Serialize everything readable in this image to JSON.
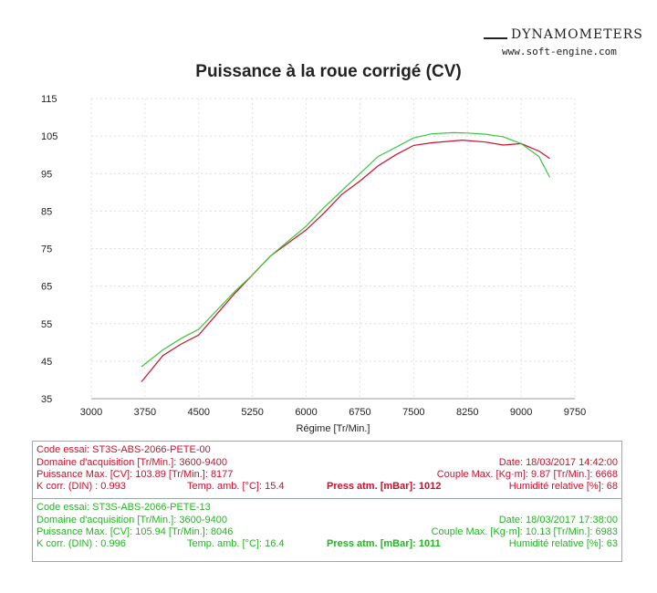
{
  "logo": {
    "brand": "DYNAMOMETERS",
    "url": "www.soft-engine.com"
  },
  "chart_data": {
    "type": "line",
    "title": "Puissance à la roue corrigé (CV)",
    "xlabel": "Régime [Tr/Min.]",
    "ylabel": "",
    "xlim": [
      3000,
      9750
    ],
    "ylim": [
      35,
      115
    ],
    "xticks": [
      3000,
      3750,
      4500,
      5250,
      6000,
      6750,
      7500,
      8250,
      9000,
      9750
    ],
    "yticks": [
      115,
      105,
      95,
      85,
      75,
      65,
      55,
      45,
      35
    ],
    "grid": true,
    "series": [
      {
        "color": "#c8102e",
        "x": [
          3700,
          4000,
          4250,
          4500,
          5000,
          5250,
          5500,
          6000,
          6250,
          6500,
          6750,
          7000,
          7250,
          7500,
          7750,
          8000,
          8177,
          8500,
          8750,
          9000,
          9250,
          9400
        ],
        "values": [
          39.5,
          46.5,
          49.5,
          52,
          63,
          68,
          73,
          80,
          84.5,
          89.5,
          93,
          97,
          100,
          102.5,
          103.2,
          103.6,
          103.9,
          103.4,
          102.6,
          103,
          101,
          99
        ]
      },
      {
        "color": "#3cc43c",
        "x": [
          3700,
          4000,
          4250,
          4500,
          5000,
          5250,
          5500,
          6000,
          6250,
          6500,
          6750,
          7000,
          7250,
          7500,
          7750,
          8046,
          8250,
          8500,
          8750,
          9000,
          9250,
          9400
        ],
        "values": [
          43.5,
          48,
          51,
          53.5,
          63.5,
          68,
          73,
          81,
          86,
          90.5,
          95,
          99.5,
          102,
          104.5,
          105.6,
          105.9,
          105.8,
          105.5,
          104.8,
          103,
          99.5,
          94
        ]
      }
    ]
  },
  "tests": [
    {
      "code": "Code essai: ST3S-ABS-2066-PETE-00",
      "domaine": "Domaine d'acquisition [Tr/Min.]: 3600-9400",
      "date": "Date: 18/03/2017   14:42:00",
      "puissance": "Puissance Max. [CV]: 103.89   [Tr/Min.]: 8177",
      "couple": "Couple Max. [Kg·m]: 9.87   [Tr/Min.]: 6668",
      "kcorr": "K corr. (DIN) : 0.993",
      "temp": "Temp. amb. [°C]: 15.4",
      "press": "Press atm. [mBar]: 1012",
      "humid": "Humidité relative [%]: 68"
    },
    {
      "code": "Code essai: ST3S-ABS-2066-PETE-13",
      "domaine": "Domaine d'acquisition [Tr/Min.]: 3600-9400",
      "date": "Date: 18/03/2017   17:38:00",
      "puissance": "Puissance Max. [CV]: 105.94   [Tr/Min.]: 8046",
      "couple": "Couple Max. [Kg·m]: 10.13   [Tr/Min.]: 6983",
      "kcorr": "K corr. (DIN) : 0.996",
      "temp": "Temp. amb. [°C]: 16.4",
      "press": "Press atm. [mBar]: 1011",
      "humid": "Humidité relative [%]: 63"
    }
  ]
}
